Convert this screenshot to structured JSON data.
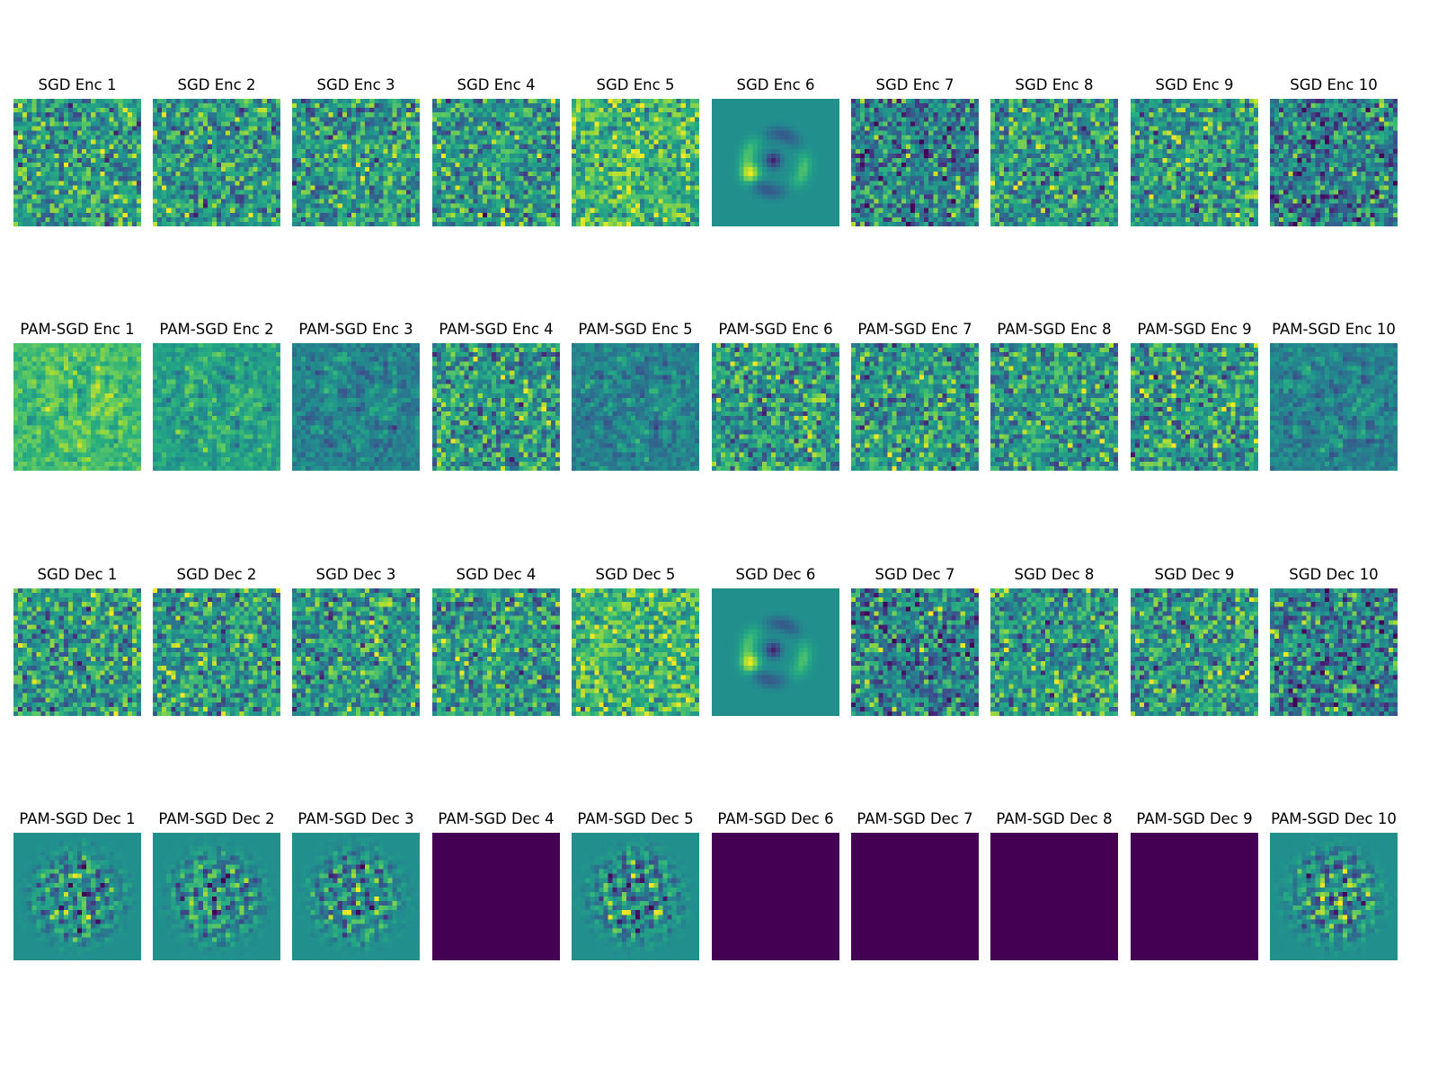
{
  "chart_data": {
    "type": "heatmap",
    "description_colormap": "viridis",
    "image_size": [
      28,
      28
    ],
    "rows": [
      {
        "titles": [
          "SGD Enc 1",
          "SGD Enc 2",
          "SGD Enc 3",
          "SGD Enc 4",
          "SGD Enc 5",
          "SGD Enc 6",
          "SGD Enc 7",
          "SGD Enc 8",
          "SGD Enc 9",
          "SGD Enc 10"
        ],
        "patterns": [
          "noise",
          "noise",
          "noise",
          "noise",
          "noise-bright",
          "digit",
          "noise-dark",
          "noise",
          "noise",
          "noise-dark"
        ]
      },
      {
        "titles": [
          "PAM-SGD Enc 1",
          "PAM-SGD Enc 2",
          "PAM-SGD Enc 3",
          "PAM-SGD Enc 4",
          "PAM-SGD Enc 5",
          "PAM-SGD Enc 6",
          "PAM-SGD Enc 7",
          "PAM-SGD Enc 8",
          "PAM-SGD Enc 9",
          "PAM-SGD Enc 10"
        ],
        "patterns": [
          "smooth-bright",
          "smooth",
          "smooth-dark",
          "noise",
          "smooth-dark",
          "noise",
          "noise",
          "noise",
          "noise",
          "smooth-dark"
        ]
      },
      {
        "titles": [
          "SGD Dec 1",
          "SGD Dec 2",
          "SGD Dec 3",
          "SGD Dec 4",
          "SGD Dec 5",
          "SGD Dec 6",
          "SGD Dec 7",
          "SGD Dec 8",
          "SGD Dec 9",
          "SGD Dec 10"
        ],
        "patterns": [
          "noise",
          "noise",
          "noise",
          "noise",
          "noise-bright",
          "digit",
          "noise-dark",
          "noise",
          "noise",
          "noise-dark"
        ]
      },
      {
        "titles": [
          "PAM-SGD Dec 1",
          "PAM-SGD Dec 2",
          "PAM-SGD Dec 3",
          "PAM-SGD Dec 4",
          "PAM-SGD Dec 5",
          "PAM-SGD Dec 6",
          "PAM-SGD Dec 7",
          "PAM-SGD Dec 8",
          "PAM-SGD Dec 9",
          "PAM-SGD Dec 10"
        ],
        "patterns": [
          "blob",
          "blob",
          "blob",
          "flat",
          "blob",
          "flat",
          "flat",
          "flat",
          "flat",
          "blob"
        ]
      }
    ]
  }
}
